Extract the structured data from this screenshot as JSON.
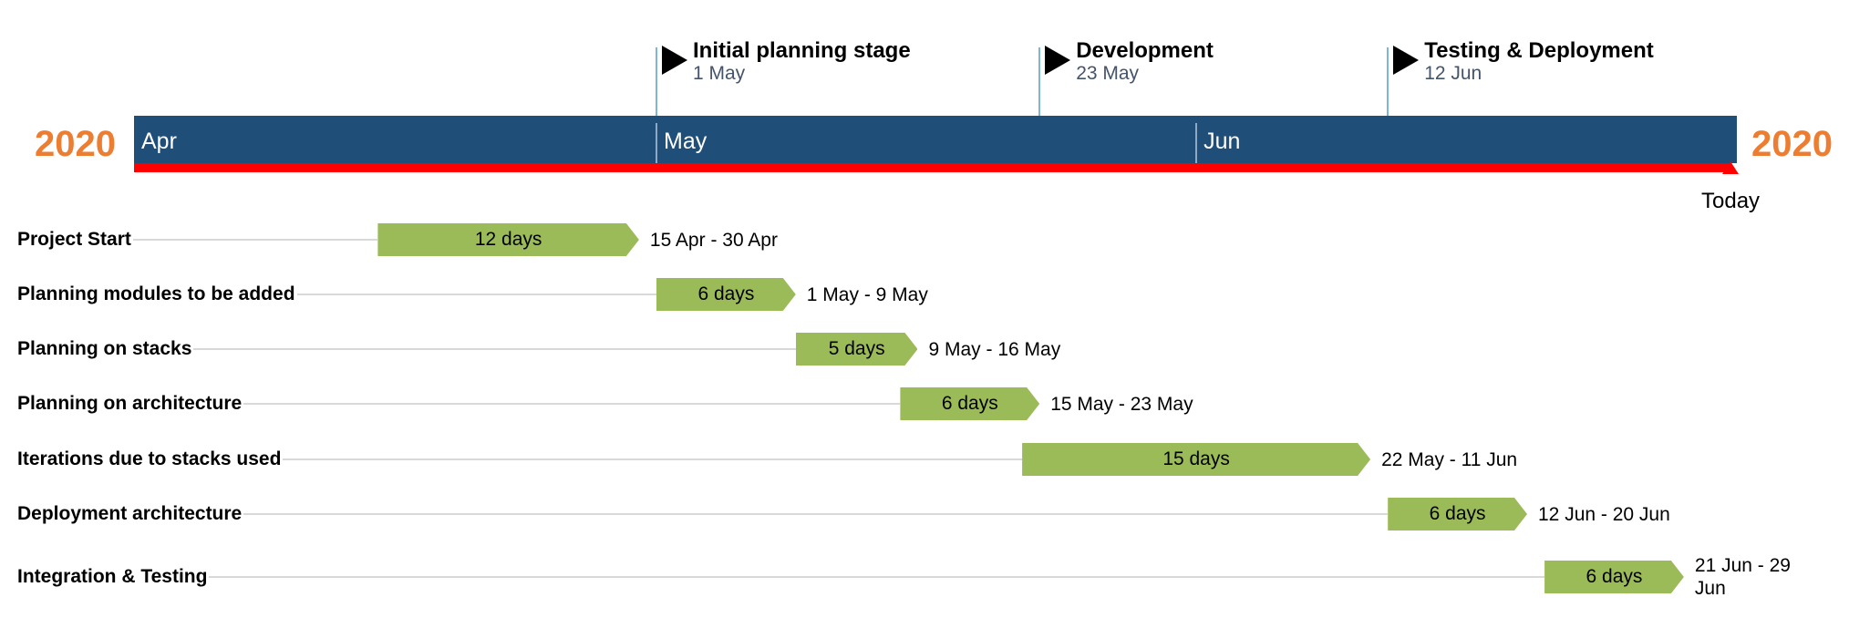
{
  "chart_data": {
    "type": "gantt",
    "year_left": "2020",
    "year_right": "2020",
    "months": [
      {
        "label": "Apr",
        "start": "2020-04-01"
      },
      {
        "label": "May",
        "start": "2020-05-01"
      },
      {
        "label": "Jun",
        "start": "2020-06-01"
      }
    ],
    "today": {
      "label": "Today",
      "date": "2020-06-29"
    },
    "milestones": [
      {
        "title": "Initial planning stage",
        "date_label": "1 May",
        "date": "2020-05-01"
      },
      {
        "title": "Development",
        "date_label": "23 May",
        "date": "2020-05-23"
      },
      {
        "title": "Testing & Deployment",
        "date_label": "12 Jun",
        "date": "2020-06-12"
      }
    ],
    "tasks": [
      {
        "name": "Project Start",
        "start": "2020-04-15",
        "end": "2020-04-30",
        "duration_label": "12 days",
        "range_label": "15 Apr - 30 Apr"
      },
      {
        "name": "Planning modules to be added",
        "start": "2020-05-01",
        "end": "2020-05-09",
        "duration_label": "6 days",
        "range_label": "1 May - 9 May"
      },
      {
        "name": "Planning on stacks",
        "start": "2020-05-09",
        "end": "2020-05-16",
        "duration_label": "5 days",
        "range_label": "9 May - 16 May"
      },
      {
        "name": "Planning on architecture",
        "start": "2020-05-15",
        "end": "2020-05-23",
        "duration_label": "6 days",
        "range_label": "15 May - 23 May"
      },
      {
        "name": "Iterations due to stacks used",
        "start": "2020-05-22",
        "end": "2020-06-11",
        "duration_label": "15 days",
        "range_label": "22 May - 11 Jun"
      },
      {
        "name": "Deployment architecture",
        "start": "2020-06-12",
        "end": "2020-06-20",
        "duration_label": "6 days",
        "range_label": "12 Jun - 20 Jun"
      },
      {
        "name": "Integration & Testing",
        "start": "2020-06-21",
        "end": "2020-06-29",
        "duration_label": "6 days",
        "range_label": "21 Jun - 29 Jun"
      }
    ],
    "colors": {
      "timescale": "#1F4E79",
      "progress": "#FF0000",
      "task_bar": "#9BBB59",
      "year": "#ED7D31",
      "milestone_date": "#44546A"
    }
  }
}
